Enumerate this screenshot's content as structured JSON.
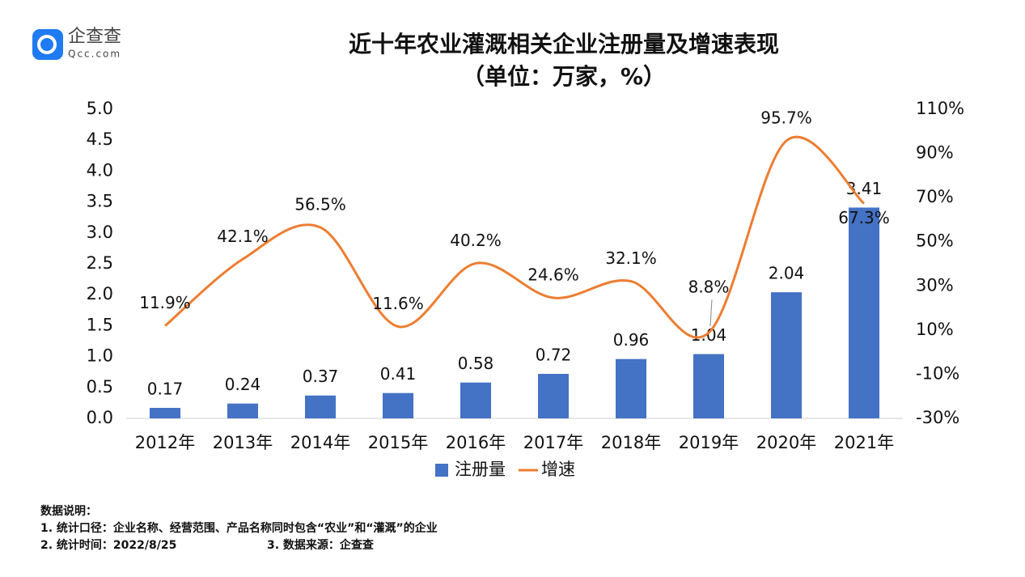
{
  "logo": {
    "name": "企查查",
    "domain": "Qcc.com"
  },
  "chart_data": {
    "type": "bar",
    "title": "近十年农业灌溉相关企业注册量及增速表现",
    "subtitle": "（单位：万家，%）",
    "categories": [
      "2012年",
      "2013年",
      "2014年",
      "2015年",
      "2016年",
      "2017年",
      "2018年",
      "2019年",
      "2020年",
      "2021年"
    ],
    "series": [
      {
        "name": "注册量",
        "type": "bar",
        "color": "#4472c4",
        "values": [
          0.17,
          0.24,
          0.37,
          0.41,
          0.58,
          0.72,
          0.96,
          1.04,
          2.04,
          3.41
        ]
      },
      {
        "name": "增速",
        "type": "line",
        "axis": "y2",
        "color": "#ed7d31",
        "values": [
          11.9,
          42.1,
          56.5,
          11.6,
          40.2,
          24.6,
          32.1,
          8.8,
          95.7,
          67.3
        ],
        "value_labels": [
          "11.9%",
          "42.1%",
          "56.5%",
          "11.6%",
          "40.2%",
          "24.6%",
          "32.1%",
          "8.8%",
          "95.7%",
          "67.3%"
        ]
      }
    ],
    "ylim": [
      0,
      5
    ],
    "yticks": [
      {
        "value": 0,
        "label": "0.0"
      },
      0.5,
      {
        "value": 1,
        "label": "1.0"
      },
      1.5,
      {
        "value": 2,
        "label": "2.0"
      },
      2.5,
      {
        "value": 3,
        "label": "3.0"
      },
      3.5,
      {
        "value": 4,
        "label": "4.0"
      },
      4.5,
      {
        "value": 5,
        "label": "5.0"
      }
    ],
    "y2lim": [
      -30,
      110
    ],
    "y2ticks": [
      {
        "value": -30,
        "label": "-30%"
      },
      {
        "value": -10,
        "label": "-10%"
      },
      {
        "value": 10,
        "label": "10%"
      },
      {
        "value": 30,
        "label": "30%"
      },
      {
        "value": 50,
        "label": "50%"
      },
      {
        "value": 70,
        "label": "70%"
      },
      {
        "value": 90,
        "label": "90%"
      },
      {
        "value": 110,
        "label": "110%"
      }
    ],
    "grid": false,
    "legend": "bottom"
  },
  "notes": {
    "heading": "数据说明：",
    "lines": [
      "1. 统计口径：企业名称、经营范围、产品名称同时包含“农业”和“灌溉”的企业",
      "2. 统计时间：2022/8/25",
      "3. 数据来源：企查查"
    ]
  }
}
